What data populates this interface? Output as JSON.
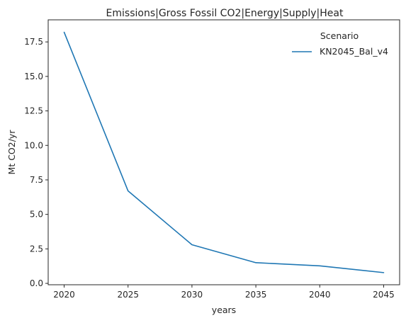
{
  "chart_data": {
    "type": "line",
    "title": "Emissions|Gross Fossil CO2|Energy|Supply|Heat",
    "xlabel": "years",
    "ylabel": "Mt CO2/yr",
    "x": [
      2020,
      2025,
      2030,
      2035,
      2040,
      2045
    ],
    "xlim": [
      2018.75,
      2046.25
    ],
    "ylim": [
      -0.1,
      19.1
    ],
    "xticks": [
      2020,
      2025,
      2030,
      2035,
      2040,
      2045
    ],
    "yticks": [
      0.0,
      2.5,
      5.0,
      7.5,
      10.0,
      12.5,
      15.0,
      17.5
    ],
    "xtick_labels": [
      "2020",
      "2025",
      "2030",
      "2035",
      "2040",
      "2045"
    ],
    "ytick_labels": [
      "0.0",
      "2.5",
      "5.0",
      "7.5",
      "10.0",
      "12.5",
      "15.0",
      "17.5"
    ],
    "grid": false,
    "legend": {
      "title": "Scenario",
      "placement": "top-right"
    },
    "series": [
      {
        "name": "KN2045_Bal_v4",
        "color": "#1f77b4",
        "values": [
          18.2,
          6.7,
          2.8,
          1.5,
          1.27,
          0.78
        ]
      }
    ]
  }
}
